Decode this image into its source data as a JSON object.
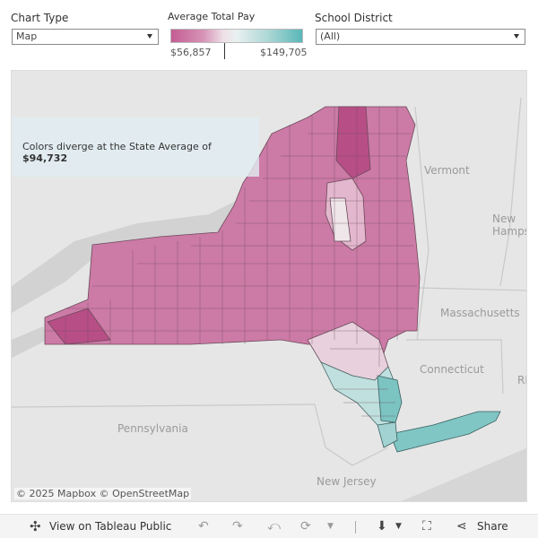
{
  "controls": {
    "chart_type": {
      "label": "Chart Type",
      "value": "Map"
    },
    "legend": {
      "title": "Average Total Pay",
      "min_label": "$56,857",
      "max_label": "$149,705"
    },
    "district": {
      "label": "School District",
      "value": "(All)"
    }
  },
  "colors": {
    "low": "#c45c93",
    "mid": "#efe8ea",
    "high": "#59b7b8"
  },
  "map": {
    "annotation_prefix": "Colors diverge at the State Average of ",
    "annotation_value": "$94,732",
    "place_labels": [
      "Vermont",
      "New Hamps",
      "Massachusetts",
      "Connecticut",
      "Pennsylvania",
      "New Jersey",
      "RI"
    ],
    "attribution": "© 2025 Mapbox  © OpenStreetMap"
  },
  "toolbar": {
    "view_label": "View on Tableau Public",
    "share_label": "Share",
    "icons": [
      "tableau-icon",
      "undo-icon",
      "redo-icon",
      "revert-icon",
      "refresh-icon",
      "download-icon",
      "fullscreen-icon",
      "share-icon"
    ]
  }
}
